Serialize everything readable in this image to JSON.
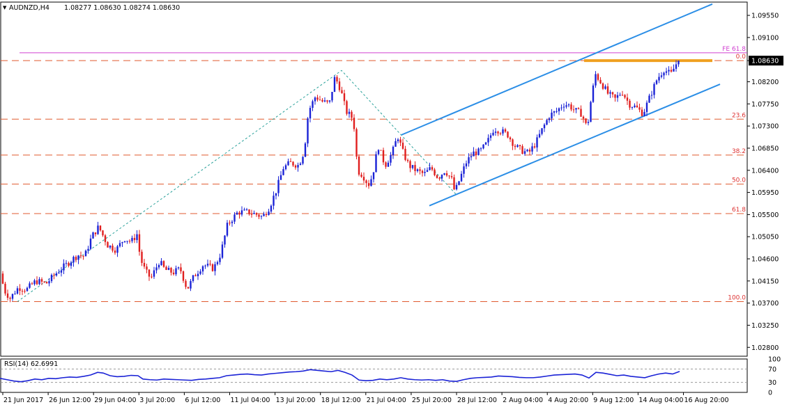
{
  "header": {
    "symbol": "AUDNZD,H4",
    "ohlc": "1.08277 1.08630 1.08274 1.08630",
    "menu_glyph": "▼"
  },
  "colors": {
    "bull": "#1a22d6",
    "bear": "#e01e1e",
    "fib_line": "#e05a2f",
    "channel": "#2b8ee6",
    "resistance": "#f0a020",
    "fe_line": "#d040d0",
    "zigzag": "#2aa19a",
    "rsi_line": "#1a22d6",
    "price_box": "#000000"
  },
  "chart_data": [
    {
      "type": "candlestick",
      "title": "AUDNZD,H4",
      "symbol": "AUDNZD",
      "timeframe": "H4",
      "y_ticks": [
        "1.09550",
        "1.09100",
        "1.08630",
        "1.08200",
        "1.07750",
        "1.07300",
        "1.06850",
        "1.06400",
        "1.05950",
        "1.05500",
        "1.05050",
        "1.04600",
        "1.04150",
        "1.03700",
        "1.03250",
        "1.02800"
      ],
      "ylim": [
        1.0262,
        1.0982
      ],
      "x_ticks": [
        "21 Jun 2017",
        "26 Jun 12:00",
        "29 Jun 04:00",
        "3 Jul 20:00",
        "6 Jul 12:00",
        "11 Jul 04:00",
        "13 Jul 20:00",
        "18 Jul 12:00",
        "21 Jul 04:00",
        "25 Jul 20:00",
        "28 Jul 12:00",
        "2 Aug 04:00",
        "4 Aug 20:00",
        "9 Aug 12:00",
        "14 Aug 04:00",
        "16 Aug 20:00"
      ],
      "current_price": "1.08630",
      "current_price_value": 1.0863,
      "fibonacci": {
        "levels": [
          {
            "label": "0.0",
            "value": 1.0863
          },
          {
            "label": "23.6",
            "value": 1.0744
          },
          {
            "label": "38.2",
            "value": 1.0671
          },
          {
            "label": "50.0",
            "value": 1.0612
          },
          {
            "label": "61.8",
            "value": 1.0552
          },
          {
            "label": "100.0",
            "value": 1.0373
          }
        ],
        "extension": {
          "label": "FE 61.8",
          "value": 1.0879
        }
      },
      "price_path": [
        [
          0,
          1.0465
        ],
        [
          4,
          1.043
        ],
        [
          10,
          1.0395
        ],
        [
          18,
          1.038
        ],
        [
          30,
          1.0402
        ],
        [
          42,
          1.0398
        ],
        [
          55,
          1.0415
        ],
        [
          70,
          1.041
        ],
        [
          85,
          1.0432
        ],
        [
          100,
          1.045
        ],
        [
          115,
          1.0468
        ],
        [
          125,
          1.0465
        ],
        [
          135,
          1.0505
        ],
        [
          145,
          1.0525
        ],
        [
          158,
          1.0488
        ],
        [
          170,
          1.0478
        ],
        [
          182,
          1.0502
        ],
        [
          192,
          1.0495
        ],
        [
          200,
          1.051
        ],
        [
          205,
          1.046
        ],
        [
          212,
          1.0435
        ],
        [
          220,
          1.042
        ],
        [
          232,
          1.0455
        ],
        [
          240,
          1.0438
        ],
        [
          252,
          1.0432
        ],
        [
          262,
          1.044
        ],
        [
          272,
          1.0398
        ],
        [
          282,
          1.0425
        ],
        [
          295,
          1.0448
        ],
        [
          310,
          1.044
        ],
        [
          320,
          1.047
        ],
        [
          330,
          1.053
        ],
        [
          345,
          1.0555
        ],
        [
          360,
          1.0555
        ],
        [
          372,
          1.055
        ],
        [
          380,
          1.0545
        ],
        [
          390,
          1.0565
        ],
        [
          400,
          1.06
        ],
        [
          410,
          1.0645
        ],
        [
          420,
          1.0655
        ],
        [
          432,
          1.065
        ],
        [
          440,
          1.068
        ],
        [
          446,
          1.076
        ],
        [
          456,
          1.079
        ],
        [
          466,
          1.078
        ],
        [
          476,
          1.0775
        ],
        [
          484,
          1.083
        ],
        [
          492,
          1.0805
        ],
        [
          500,
          1.076
        ],
        [
          508,
          1.0748
        ],
        [
          513,
          1.072
        ],
        [
          516,
          1.064
        ],
        [
          524,
          1.063
        ],
        [
          532,
          1.061
        ],
        [
          538,
          1.063
        ],
        [
          546,
          1.069
        ],
        [
          556,
          1.065
        ],
        [
          566,
          1.0675
        ],
        [
          574,
          1.071
        ],
        [
          582,
          1.0675
        ],
        [
          590,
          1.065
        ],
        [
          600,
          1.064
        ],
        [
          612,
          1.0632
        ],
        [
          622,
          1.0645
        ],
        [
          632,
          1.0625
        ],
        [
          642,
          1.064
        ],
        [
          652,
          1.062
        ],
        [
          656,
          1.0595
        ],
        [
          662,
          1.0618
        ],
        [
          672,
          1.0655
        ],
        [
          682,
          1.0675
        ],
        [
          692,
          1.0678
        ],
        [
          702,
          1.0695
        ],
        [
          712,
          1.0725
        ],
        [
          722,
          1.072
        ],
        [
          732,
          1.0712
        ],
        [
          742,
          1.069
        ],
        [
          752,
          1.068
        ],
        [
          762,
          1.0675
        ],
        [
          772,
          1.0695
        ],
        [
          782,
          1.0725
        ],
        [
          792,
          1.0752
        ],
        [
          802,
          1.076
        ],
        [
          812,
          1.0775
        ],
        [
          820,
          1.0772
        ],
        [
          828,
          1.0762
        ],
        [
          838,
          1.0755
        ],
        [
          846,
          1.0725
        ],
        [
          852,
          1.079
        ],
        [
          858,
          1.0835
        ],
        [
          866,
          1.0818
        ],
        [
          876,
          1.0795
        ],
        [
          886,
          1.0785
        ],
        [
          896,
          1.08
        ],
        [
          906,
          1.0775
        ],
        [
          916,
          1.0768
        ],
        [
          926,
          1.0755
        ],
        [
          936,
          1.079
        ],
        [
          946,
          1.0825
        ],
        [
          956,
          1.0845
        ],
        [
          966,
          1.0835
        ],
        [
          976,
          1.0863
        ]
      ],
      "zigzag": [
        [
          25,
          1.0373
        ],
        [
          490,
          1.0843
        ],
        [
          655,
          1.059
        ]
      ],
      "channel_lines": [
        [
          [
            576,
            1.0712
          ],
          [
            1022,
            1.0978
          ]
        ],
        [
          [
            616,
            1.0568
          ],
          [
            1033,
            1.0815
          ]
        ]
      ],
      "resistance": [
        [
          838,
          1.0863
        ],
        [
          1022,
          1.0863
        ]
      ]
    },
    {
      "type": "line",
      "title": "RSI(14) 62.6991",
      "name": "RSI(14)",
      "value": "62.6991",
      "y_ticks": [
        "100",
        "70",
        "30",
        "0"
      ],
      "levels": [
        70,
        30
      ],
      "ylim": [
        0,
        100
      ],
      "series": [
        [
          0,
          42
        ],
        [
          10,
          38
        ],
        [
          20,
          34
        ],
        [
          30,
          32
        ],
        [
          40,
          35
        ],
        [
          50,
          40
        ],
        [
          60,
          38
        ],
        [
          70,
          42
        ],
        [
          80,
          41
        ],
        [
          90,
          44
        ],
        [
          100,
          46
        ],
        [
          110,
          45
        ],
        [
          120,
          48
        ],
        [
          130,
          52
        ],
        [
          140,
          60
        ],
        [
          148,
          58
        ],
        [
          158,
          50
        ],
        [
          168,
          47
        ],
        [
          178,
          48
        ],
        [
          188,
          51
        ],
        [
          198,
          50
        ],
        [
          205,
          40
        ],
        [
          215,
          38
        ],
        [
          225,
          37
        ],
        [
          235,
          40
        ],
        [
          245,
          39
        ],
        [
          255,
          38
        ],
        [
          265,
          37
        ],
        [
          275,
          36
        ],
        [
          285,
          39
        ],
        [
          295,
          40
        ],
        [
          305,
          42
        ],
        [
          315,
          44
        ],
        [
          325,
          50
        ],
        [
          335,
          52
        ],
        [
          345,
          54
        ],
        [
          355,
          55
        ],
        [
          365,
          53
        ],
        [
          375,
          52
        ],
        [
          385,
          55
        ],
        [
          395,
          57
        ],
        [
          405,
          59
        ],
        [
          415,
          61
        ],
        [
          425,
          62
        ],
        [
          435,
          64
        ],
        [
          445,
          68
        ],
        [
          455,
          66
        ],
        [
          465,
          64
        ],
        [
          475,
          62
        ],
        [
          485,
          66
        ],
        [
          495,
          60
        ],
        [
          505,
          52
        ],
        [
          515,
          37
        ],
        [
          525,
          35
        ],
        [
          535,
          36
        ],
        [
          545,
          40
        ],
        [
          555,
          38
        ],
        [
          565,
          40
        ],
        [
          575,
          44
        ],
        [
          585,
          40
        ],
        [
          595,
          38
        ],
        [
          605,
          37
        ],
        [
          615,
          38
        ],
        [
          625,
          36
        ],
        [
          635,
          38
        ],
        [
          645,
          34
        ],
        [
          655,
          33
        ],
        [
          665,
          38
        ],
        [
          675,
          42
        ],
        [
          685,
          44
        ],
        [
          695,
          45
        ],
        [
          705,
          46
        ],
        [
          715,
          49
        ],
        [
          725,
          48
        ],
        [
          735,
          47
        ],
        [
          745,
          45
        ],
        [
          755,
          44
        ],
        [
          765,
          44
        ],
        [
          775,
          46
        ],
        [
          785,
          49
        ],
        [
          795,
          52
        ],
        [
          805,
          53
        ],
        [
          815,
          54
        ],
        [
          825,
          55
        ],
        [
          835,
          52
        ],
        [
          845,
          43
        ],
        [
          855,
          60
        ],
        [
          865,
          58
        ],
        [
          875,
          54
        ],
        [
          885,
          50
        ],
        [
          895,
          52
        ],
        [
          905,
          48
        ],
        [
          915,
          46
        ],
        [
          925,
          44
        ],
        [
          935,
          50
        ],
        [
          945,
          55
        ],
        [
          955,
          58
        ],
        [
          965,
          55
        ],
        [
          975,
          62.7
        ]
      ]
    }
  ]
}
